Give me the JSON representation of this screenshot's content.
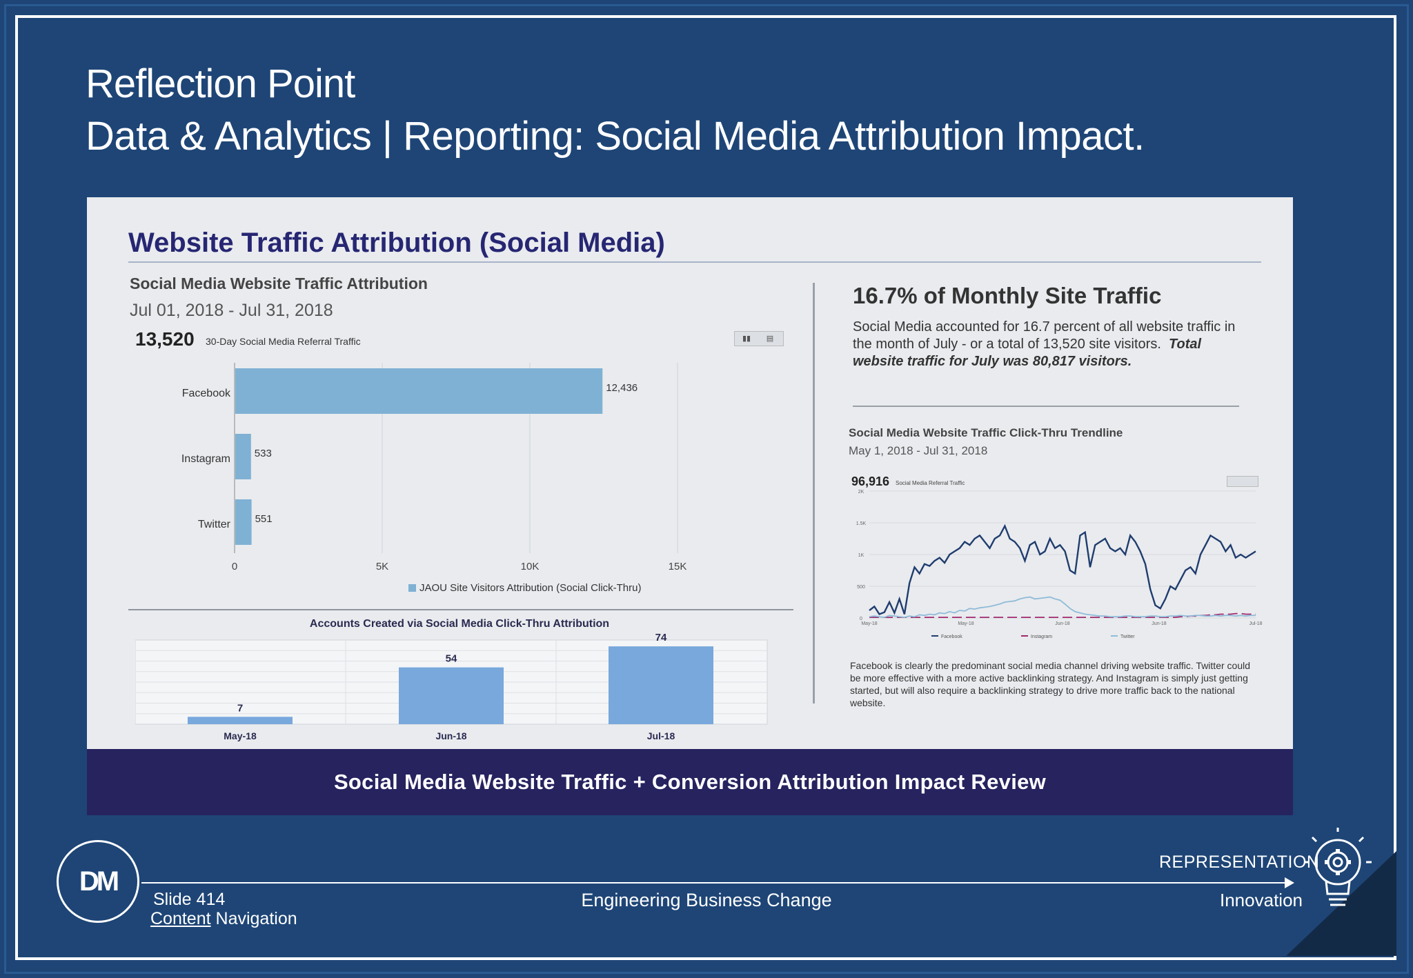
{
  "header": {
    "title_line1": "Reflection Point",
    "title_line2": "Data & Analytics | Reporting: Social Media Attribution Impact."
  },
  "panel": {
    "title": "Website Traffic Attribution (Social Media)",
    "left": {
      "subtitle": "Social Media Website Traffic Attribution",
      "date_range": "Jul 01, 2018 - Jul 31, 2018",
      "total": "13,520",
      "total_caption": "30-Day Social Media Referral Traffic",
      "legend": "JAOU Site Visitors Attribution (Social Click-Thru)",
      "accounts_title": "Accounts Created via Social Media Click-Thru Attribution"
    },
    "right": {
      "heading": "16.7% of Monthly Site Traffic",
      "paragraph": "Social Media accounted for 16.7 percent of all website traffic in the month of July - or a total of 13,520 site visitors.",
      "paragraph_bold": "Total website traffic for July was 80,817 visitors.",
      "trend_title": "Social Media Website Traffic Click-Thru Trendline",
      "trend_date": "May 1, 2018 - Jul 31, 2018",
      "trend_total": "96,916",
      "trend_caption": "Social Media Referral Traffic",
      "note": "Facebook is clearly the predominant social media channel driving website traffic. Twitter could be more effective with a more active backlinking strategy. And Instagram is simply just getting started, but will also require a backlinking strategy to drive more traffic back to the national website."
    }
  },
  "banner": "Social Media Website Traffic + Conversion Attribution Impact Review",
  "footer": {
    "logo_text": "DM",
    "slide": "Slide 414",
    "content_nav_link": "Content",
    "content_nav_rest": " Navigation",
    "center": "Engineering Business Change",
    "representation": "REPRESENTATION",
    "innovation": "Innovation"
  },
  "chart_data": [
    {
      "type": "bar",
      "orientation": "horizontal",
      "categories": [
        "Facebook",
        "Instagram",
        "Twitter"
      ],
      "series": [
        {
          "name": "JAOU Site Visitors Attribution (Social Click-Thru)",
          "values": [
            12436,
            533,
            551
          ]
        }
      ],
      "data_labels": [
        "12,436",
        "533",
        "551"
      ],
      "xlim": [
        0,
        15000
      ],
      "xticks": [
        "0",
        "5K",
        "10K",
        "15K"
      ],
      "color": "#7fb1d4",
      "grid": true,
      "legend": "bottom"
    },
    {
      "type": "bar",
      "title": "Accounts Created via Social Media Click-Thru Attribution",
      "categories": [
        "May-18",
        "Jun-18",
        "Jul-18"
      ],
      "values": [
        7,
        54,
        74
      ],
      "ylim": [
        0,
        80
      ],
      "color": "#78a8dc",
      "grid": true
    },
    {
      "type": "line",
      "title": "Social Media Website Traffic Click-Thru Trendline",
      "ylim": [
        0,
        2000
      ],
      "yticks": [
        "0",
        "500",
        "1K",
        "1.5K",
        "2K"
      ],
      "xticks": [
        "May-18",
        "May-18",
        "Jun-18",
        "Jun-18",
        "Jul-18"
      ],
      "series": [
        {
          "name": "Facebook",
          "color": "#1f3c6e",
          "values": [
            120,
            180,
            60,
            90,
            250,
            80,
            300,
            60,
            550,
            800,
            700,
            850,
            820,
            900,
            950,
            870,
            1000,
            1050,
            1100,
            1200,
            1150,
            1250,
            1300,
            1200,
            1100,
            1250,
            1300,
            1450,
            1250,
            1200,
            1100,
            900,
            1150,
            1200,
            1000,
            1050,
            1250,
            1100,
            1150,
            1050,
            750,
            700,
            1300,
            1350,
            800,
            1150,
            1200,
            1250,
            1100,
            1050,
            1100,
            1000,
            1300,
            1200,
            1050,
            850,
            450,
            200,
            150,
            300,
            500,
            450,
            600,
            750,
            800,
            700,
            1000,
            1150,
            1300,
            1250,
            1200,
            1050,
            1150,
            950,
            1000,
            950,
            1000,
            1050
          ]
        },
        {
          "name": "Instagram",
          "color": "#a0296f",
          "values": [
            10,
            10,
            10,
            10,
            10,
            10,
            10,
            10,
            10,
            10,
            10,
            10,
            10,
            10,
            10,
            10,
            10,
            10,
            10,
            10,
            10,
            10,
            10,
            10,
            10,
            10,
            10,
            10,
            10,
            10,
            10,
            10,
            10,
            10,
            10,
            10,
            10,
            10,
            10,
            10,
            10,
            10,
            10,
            10,
            10,
            10,
            10,
            10,
            10,
            10,
            10,
            10,
            10,
            10,
            10,
            10,
            10,
            10,
            10,
            10,
            10,
            10,
            20,
            20,
            30,
            30,
            40,
            40,
            50,
            50,
            60,
            60,
            60,
            70,
            70,
            60,
            60,
            60
          ]
        },
        {
          "name": "Twitter",
          "color": "#8fbbd9",
          "values": [
            20,
            30,
            20,
            10,
            40,
            30,
            20,
            10,
            30,
            20,
            50,
            40,
            60,
            50,
            80,
            70,
            100,
            80,
            120,
            110,
            150,
            140,
            160,
            170,
            180,
            200,
            220,
            250,
            260,
            270,
            300,
            320,
            330,
            300,
            310,
            320,
            330,
            300,
            280,
            220,
            150,
            100,
            80,
            60,
            50,
            40,
            30,
            30,
            20,
            20,
            20,
            30,
            30,
            20,
            20,
            20,
            30,
            30,
            20,
            20,
            30,
            30,
            40,
            30,
            30,
            40,
            40,
            30,
            30,
            40,
            30,
            40,
            40,
            30,
            40,
            30,
            40,
            40
          ]
        }
      ],
      "legend": "bottom"
    }
  ]
}
